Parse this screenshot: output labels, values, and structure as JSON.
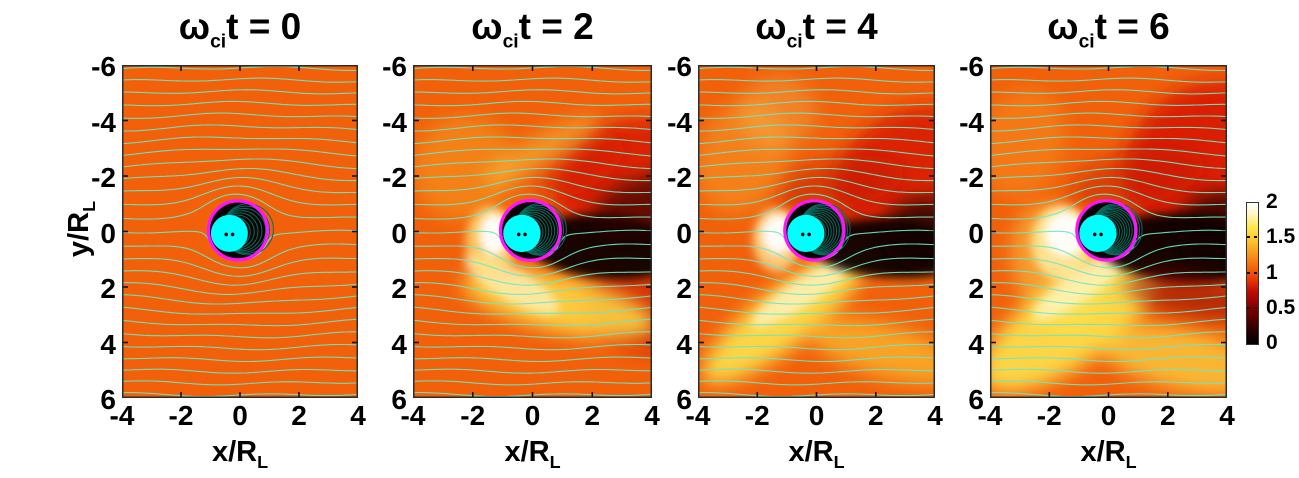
{
  "ui": {
    "titles": [
      {
        "omega": "ω",
        "sub": "ci",
        "eq": "t = 0"
      },
      {
        "omega": "ω",
        "sub": "ci",
        "eq": "t = 2"
      },
      {
        "omega": "ω",
        "sub": "ci",
        "eq": "t = 4"
      },
      {
        "omega": "ω",
        "sub": "ci",
        "eq": "t = 6"
      }
    ],
    "xlabel": {
      "main": "x/R",
      "sub": "L"
    },
    "ylabel": {
      "main": "y/R",
      "sub": "L"
    },
    "yticks": [
      "-6",
      "-4",
      "-2",
      "0",
      "2",
      "4",
      "6"
    ],
    "xticks": [
      "-4",
      "-2",
      "0",
      "2",
      "4"
    ],
    "cbticks": [
      "2",
      "1.5",
      "1",
      "0.5",
      "0"
    ]
  },
  "chart_data": {
    "type": "heatmap",
    "layout": "1x4 time-sequence panels with shared colorbar",
    "title": "",
    "panels": [
      {
        "title": "ω_ci t = 0",
        "time": 0,
        "description": "uniform ambient field value ~1 (orange) everywhere; symmetric cyan streamlines converging around magnetized obstacle at origin"
      },
      {
        "title": "ω_ci t = 2",
        "time": 2,
        "description": "dark depletion wake (value ~0) downstream (+x) of obstacle, red band above wake, bright white spot (~2) on -x side of obstacle, yellow enhancement band sweeping below obstacle toward lower right"
      },
      {
        "title": "ω_ci t = 4",
        "time": 4,
        "description": "wake narrows and extends to +x edge, red region grows in upper right, bright yellow diagonal band extends from obstacle toward lower left and lower right"
      },
      {
        "title": "ω_ci t = 6",
        "time": 6,
        "description": "strong dark wake to +x, large red region upper right, broad yellow/white enhancement wedge filling lower-left half below obstacle"
      }
    ],
    "x": {
      "label": "x/R_L",
      "range": [
        -4,
        4
      ],
      "ticks": [
        -4,
        -2,
        0,
        2,
        4
      ]
    },
    "y": {
      "label": "y/R_L",
      "range": [
        -6,
        6
      ],
      "ticks": [
        -6,
        -4,
        -2,
        0,
        2,
        4,
        6
      ],
      "direction": "inverted (negative at top)"
    },
    "colorbar": {
      "range": [
        0,
        2
      ],
      "ticks": [
        2,
        1.5,
        1,
        0.5,
        0
      ],
      "colormap": "hot: black(0) -> dark red(0.5) -> orange(1) -> yellow(1.5) -> white(2)"
    },
    "overlays": {
      "streamlines_color": "cyan",
      "obstacle_boundary": "magenta circle, radius 1 R_L at origin",
      "obstacle_interior": "black with spiral cyan field lines",
      "obstacle_core": "solid cyan blob with two small black dots"
    }
  },
  "render": {
    "bg": "#F2600A",
    "stream_color": "rgba(105,232,200,0.92)",
    "spiral_color": "#0B6B5F",
    "disk_color": "#0A0402",
    "core_color": "#00FFFF",
    "ring_color": "#FF14FF",
    "panels": [
      {
        "loops": 9,
        "blobs": []
      },
      {
        "loops": 12,
        "blobs": [
          [
            3.4,
            -1.7,
            2.7,
            2.3,
            -20,
            "#D81A00",
            0.85,
            "lg"
          ],
          [
            1.6,
            -2.4,
            1.6,
            0.9,
            -30,
            "#D01600",
            0.45,
            "lg"
          ],
          [
            3.7,
            2.8,
            2.0,
            1.5,
            15,
            "#C41400",
            0.6,
            "lg"
          ],
          [
            -2.3,
            -2.3,
            1.7,
            1.9,
            25,
            "#F7A024",
            0.5,
            "lg"
          ],
          [
            0.3,
            -2.9,
            2.2,
            0.55,
            -28,
            "#F9C93F",
            0.5,
            "lg"
          ],
          [
            0.9,
            2.6,
            3.3,
            1.0,
            13,
            "#FFE44A",
            0.8,
            "lg"
          ],
          [
            -0.7,
            1.9,
            1.8,
            0.6,
            30,
            "#FFFBDC",
            0.6,
            "sm"
          ],
          [
            2.5,
            0.55,
            2.7,
            1.15,
            4,
            "#120000",
            0.95,
            "sm"
          ],
          [
            3.7,
            -0.9,
            1.8,
            1.0,
            -18,
            "#2A0000",
            0.65,
            "lg"
          ],
          [
            -1.4,
            0.35,
            0.85,
            1.25,
            0,
            "#FFEA80",
            0.7,
            "sm"
          ],
          [
            -1.3,
            0.1,
            0.5,
            0.78,
            0,
            "#FFFFFF",
            0.95,
            "sm"
          ]
        ]
      },
      {
        "loops": 13,
        "blobs": [
          [
            3.4,
            -1.9,
            2.9,
            2.5,
            -25,
            "#D81A00",
            0.85,
            "lg"
          ],
          [
            0.8,
            -1.7,
            2.2,
            0.9,
            -12,
            "#C01200",
            0.5,
            "lg"
          ],
          [
            -2.5,
            -2.7,
            1.5,
            2.1,
            20,
            "#F8A62A",
            0.45,
            "lg"
          ],
          [
            -1.3,
            -4.3,
            1.3,
            1.3,
            0,
            "#F6CE66",
            0.3,
            "lg"
          ],
          [
            -1.1,
            3.1,
            3.4,
            1.05,
            -38,
            "#FFE94F",
            0.85,
            "lg"
          ],
          [
            2.3,
            4.3,
            2.7,
            0.95,
            16,
            "#FFD83D",
            0.55,
            "lg"
          ],
          [
            -0.5,
            2.2,
            2.0,
            0.5,
            -33,
            "#FFFDE8",
            0.6,
            "sm"
          ],
          [
            2.4,
            0.6,
            2.6,
            1.05,
            3,
            "#0E0000",
            0.95,
            "sm"
          ],
          [
            3.7,
            0.1,
            1.5,
            1.3,
            0,
            "#150000",
            0.75,
            "lg"
          ],
          [
            -1.35,
            0.3,
            0.8,
            1.15,
            0,
            "#FFF3A6",
            0.7,
            "sm"
          ],
          [
            -1.3,
            0.1,
            0.55,
            0.72,
            0,
            "#FFFFFF",
            0.95,
            "sm"
          ]
        ]
      },
      {
        "loops": 14,
        "blobs": [
          [
            3.5,
            -2.4,
            3.1,
            2.9,
            -30,
            "#D81A00",
            0.9,
            "lg"
          ],
          [
            1.0,
            -1.9,
            2.3,
            1.0,
            -14,
            "#C01200",
            0.45,
            "lg"
          ],
          [
            -2.9,
            -3.2,
            1.4,
            2.0,
            15,
            "#F8A62A",
            0.35,
            "lg"
          ],
          [
            -1.7,
            1.3,
            1.5,
            2.4,
            -18,
            "#FBCD4B",
            0.55,
            "lg"
          ],
          [
            -1.3,
            3.3,
            3.5,
            1.5,
            -35,
            "#FFE94F",
            0.85,
            "lg"
          ],
          [
            2.5,
            4.6,
            2.9,
            1.1,
            13,
            "#FFE34A",
            0.65,
            "lg"
          ],
          [
            -0.9,
            1.9,
            2.0,
            0.55,
            -35,
            "#FFFDE8",
            0.6,
            "sm"
          ],
          [
            2.6,
            0.6,
            2.9,
            1.25,
            3,
            "#0A0000",
            0.96,
            "sm"
          ],
          [
            3.8,
            0.0,
            1.5,
            1.4,
            0,
            "#120000",
            0.75,
            "lg"
          ],
          [
            2.9,
            2.3,
            2.4,
            0.8,
            10,
            "#8A0800",
            0.55,
            "lg"
          ],
          [
            -1.6,
            0.4,
            1.0,
            1.35,
            0,
            "#FFF3A6",
            0.8,
            "sm"
          ],
          [
            -1.45,
            0.1,
            0.7,
            0.8,
            0,
            "#FFFFFF",
            0.95,
            "sm"
          ]
        ]
      }
    ]
  }
}
